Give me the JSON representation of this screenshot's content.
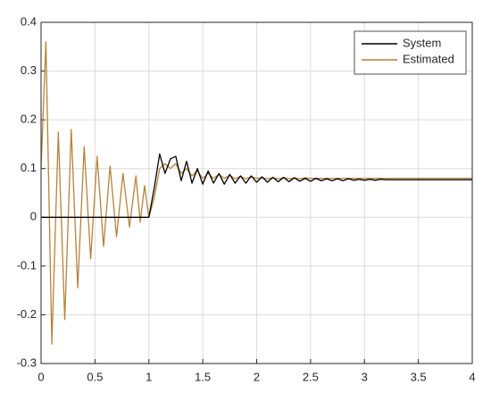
{
  "chart_data": {
    "type": "line",
    "x": [
      0,
      0.045,
      0.1,
      0.16,
      0.22,
      0.28,
      0.34,
      0.4,
      0.46,
      0.52,
      0.58,
      0.64,
      0.7,
      0.76,
      0.82,
      0.88,
      0.92,
      0.96,
      1.0,
      1.05,
      1.1,
      1.15,
      1.2,
      1.25,
      1.3,
      1.35,
      1.4,
      1.45,
      1.5,
      1.55,
      1.6,
      1.65,
      1.7,
      1.75,
      1.8,
      1.85,
      1.9,
      1.95,
      2.0,
      2.05,
      2.1,
      2.15,
      2.2,
      2.25,
      2.3,
      2.35,
      2.4,
      2.45,
      2.5,
      2.55,
      2.6,
      2.65,
      2.7,
      2.75,
      2.8,
      2.85,
      2.9,
      2.95,
      3.0,
      3.05,
      3.1,
      3.15,
      3.2,
      3.25,
      3.3,
      3.4,
      3.5,
      3.6,
      3.7,
      3.8,
      3.9,
      4.0
    ],
    "series": [
      {
        "name": "System",
        "color": "#000000",
        "values": [
          0,
          0,
          0,
          0,
          0,
          0,
          0,
          0,
          0,
          0,
          0,
          0,
          0,
          0,
          0,
          0,
          0,
          0,
          0,
          0.06,
          0.13,
          0.09,
          0.12,
          0.125,
          0.075,
          0.115,
          0.07,
          0.1,
          0.068,
          0.095,
          0.07,
          0.09,
          0.068,
          0.088,
          0.07,
          0.085,
          0.07,
          0.085,
          0.072,
          0.083,
          0.072,
          0.082,
          0.073,
          0.082,
          0.073,
          0.081,
          0.074,
          0.08,
          0.074,
          0.08,
          0.075,
          0.079,
          0.075,
          0.079,
          0.075,
          0.079,
          0.076,
          0.078,
          0.076,
          0.078,
          0.076,
          0.078,
          0.077,
          0.077,
          0.077,
          0.077,
          0.077,
          0.077,
          0.077,
          0.077,
          0.077,
          0.077
        ]
      },
      {
        "name": "Estimated",
        "color": "#b5843a",
        "values": [
          0.1,
          0.36,
          -0.26,
          0.175,
          -0.21,
          0.18,
          -0.145,
          0.145,
          -0.085,
          0.125,
          -0.06,
          0.105,
          -0.04,
          0.09,
          -0.02,
          0.085,
          -0.01,
          0.065,
          0,
          0.04,
          0.1,
          0.11,
          0.1,
          0.11,
          0.09,
          0.1,
          0.085,
          0.095,
          0.08,
          0.09,
          0.08,
          0.088,
          0.08,
          0.086,
          0.079,
          0.084,
          0.079,
          0.083,
          0.08,
          0.081,
          0.079,
          0.081,
          0.079,
          0.081,
          0.079,
          0.081,
          0.079,
          0.081,
          0.08,
          0.08,
          0.08,
          0.08,
          0.08,
          0.08,
          0.08,
          0.08,
          0.08,
          0.08,
          0.08,
          0.08,
          0.08,
          0.08,
          0.08,
          0.08,
          0.08,
          0.08,
          0.08,
          0.08,
          0.08,
          0.08,
          0.08,
          0.08
        ]
      }
    ],
    "xlim": [
      0,
      4
    ],
    "xticks": [
      0,
      0.5,
      1,
      1.5,
      2,
      2.5,
      3,
      3.5,
      4
    ],
    "ylim": [
      -0.3,
      0.4
    ],
    "yticks": [
      -0.3,
      -0.2,
      -0.1,
      0,
      0.1,
      0.2,
      0.3,
      0.4
    ],
    "grid": true,
    "legend": "top-right"
  }
}
